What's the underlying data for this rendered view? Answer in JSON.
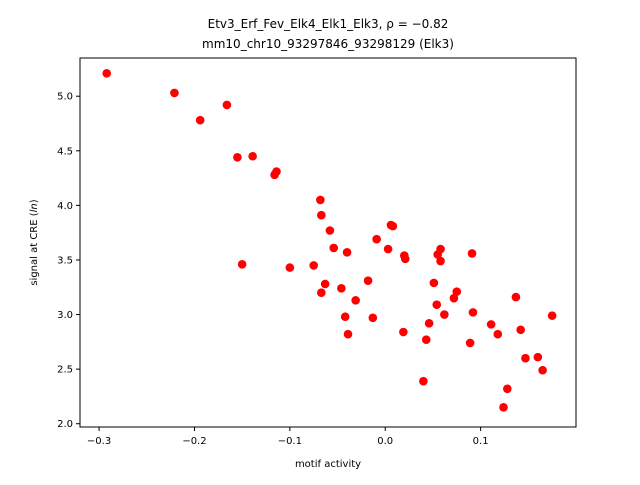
{
  "chart_data": {
    "type": "scatter",
    "title_line1": "Etv3_Erf_Fev_Elk4_Elk1_Elk3, ρ = −0.82",
    "title_line2": "mm10_chr10_93297846_93298129 (Elk3)",
    "xlabel": "motif activity",
    "ylabel_prefix": "signal at CRE (",
    "ylabel_italic": "ln",
    "ylabel_suffix": ")",
    "xlim": [
      -0.32,
      0.2
    ],
    "ylim": [
      1.97,
      5.35
    ],
    "xticks": [
      -0.3,
      -0.2,
      -0.1,
      0.0,
      0.1
    ],
    "xtick_labels": [
      "−0.3",
      "−0.2",
      "−0.1",
      "0.0",
      "0.1"
    ],
    "yticks": [
      2.0,
      2.5,
      3.0,
      3.5,
      4.0,
      4.5,
      5.0
    ],
    "ytick_labels": [
      "2.0",
      "2.5",
      "3.0",
      "3.5",
      "4.0",
      "4.5",
      "5.0"
    ],
    "grid": false,
    "marker_color": "#ff0000",
    "points": [
      {
        "x": -0.292,
        "y": 5.21
      },
      {
        "x": -0.221,
        "y": 5.03
      },
      {
        "x": -0.194,
        "y": 4.78
      },
      {
        "x": -0.166,
        "y": 4.92
      },
      {
        "x": -0.155,
        "y": 4.44
      },
      {
        "x": -0.15,
        "y": 3.46
      },
      {
        "x": -0.139,
        "y": 4.45
      },
      {
        "x": -0.116,
        "y": 4.28
      },
      {
        "x": -0.114,
        "y": 4.31
      },
      {
        "x": -0.1,
        "y": 3.43
      },
      {
        "x": -0.075,
        "y": 3.45
      },
      {
        "x": -0.068,
        "y": 4.05
      },
      {
        "x": -0.067,
        "y": 3.91
      },
      {
        "x": -0.067,
        "y": 3.2
      },
      {
        "x": -0.063,
        "y": 3.28
      },
      {
        "x": -0.058,
        "y": 3.77
      },
      {
        "x": -0.054,
        "y": 3.61
      },
      {
        "x": -0.046,
        "y": 3.24
      },
      {
        "x": -0.042,
        "y": 2.98
      },
      {
        "x": -0.04,
        "y": 3.57
      },
      {
        "x": -0.039,
        "y": 2.82
      },
      {
        "x": -0.031,
        "y": 3.13
      },
      {
        "x": -0.018,
        "y": 3.31
      },
      {
        "x": -0.013,
        "y": 2.97
      },
      {
        "x": -0.009,
        "y": 3.69
      },
      {
        "x": 0.003,
        "y": 3.6
      },
      {
        "x": 0.006,
        "y": 3.82
      },
      {
        "x": 0.008,
        "y": 3.81
      },
      {
        "x": 0.019,
        "y": 2.84
      },
      {
        "x": 0.02,
        "y": 3.54
      },
      {
        "x": 0.021,
        "y": 3.51
      },
      {
        "x": 0.04,
        "y": 2.39
      },
      {
        "x": 0.043,
        "y": 2.77
      },
      {
        "x": 0.046,
        "y": 2.92
      },
      {
        "x": 0.051,
        "y": 3.29
      },
      {
        "x": 0.054,
        "y": 3.09
      },
      {
        "x": 0.055,
        "y": 3.55
      },
      {
        "x": 0.058,
        "y": 3.6
      },
      {
        "x": 0.058,
        "y": 3.49
      },
      {
        "x": 0.062,
        "y": 3.0
      },
      {
        "x": 0.072,
        "y": 3.15
      },
      {
        "x": 0.075,
        "y": 3.21
      },
      {
        "x": 0.089,
        "y": 2.74
      },
      {
        "x": 0.091,
        "y": 3.56
      },
      {
        "x": 0.092,
        "y": 3.02
      },
      {
        "x": 0.111,
        "y": 2.91
      },
      {
        "x": 0.118,
        "y": 2.82
      },
      {
        "x": 0.124,
        "y": 2.15
      },
      {
        "x": 0.128,
        "y": 2.32
      },
      {
        "x": 0.137,
        "y": 3.16
      },
      {
        "x": 0.142,
        "y": 2.86
      },
      {
        "x": 0.147,
        "y": 2.6
      },
      {
        "x": 0.16,
        "y": 2.61
      },
      {
        "x": 0.165,
        "y": 2.49
      },
      {
        "x": 0.175,
        "y": 2.99
      }
    ]
  }
}
